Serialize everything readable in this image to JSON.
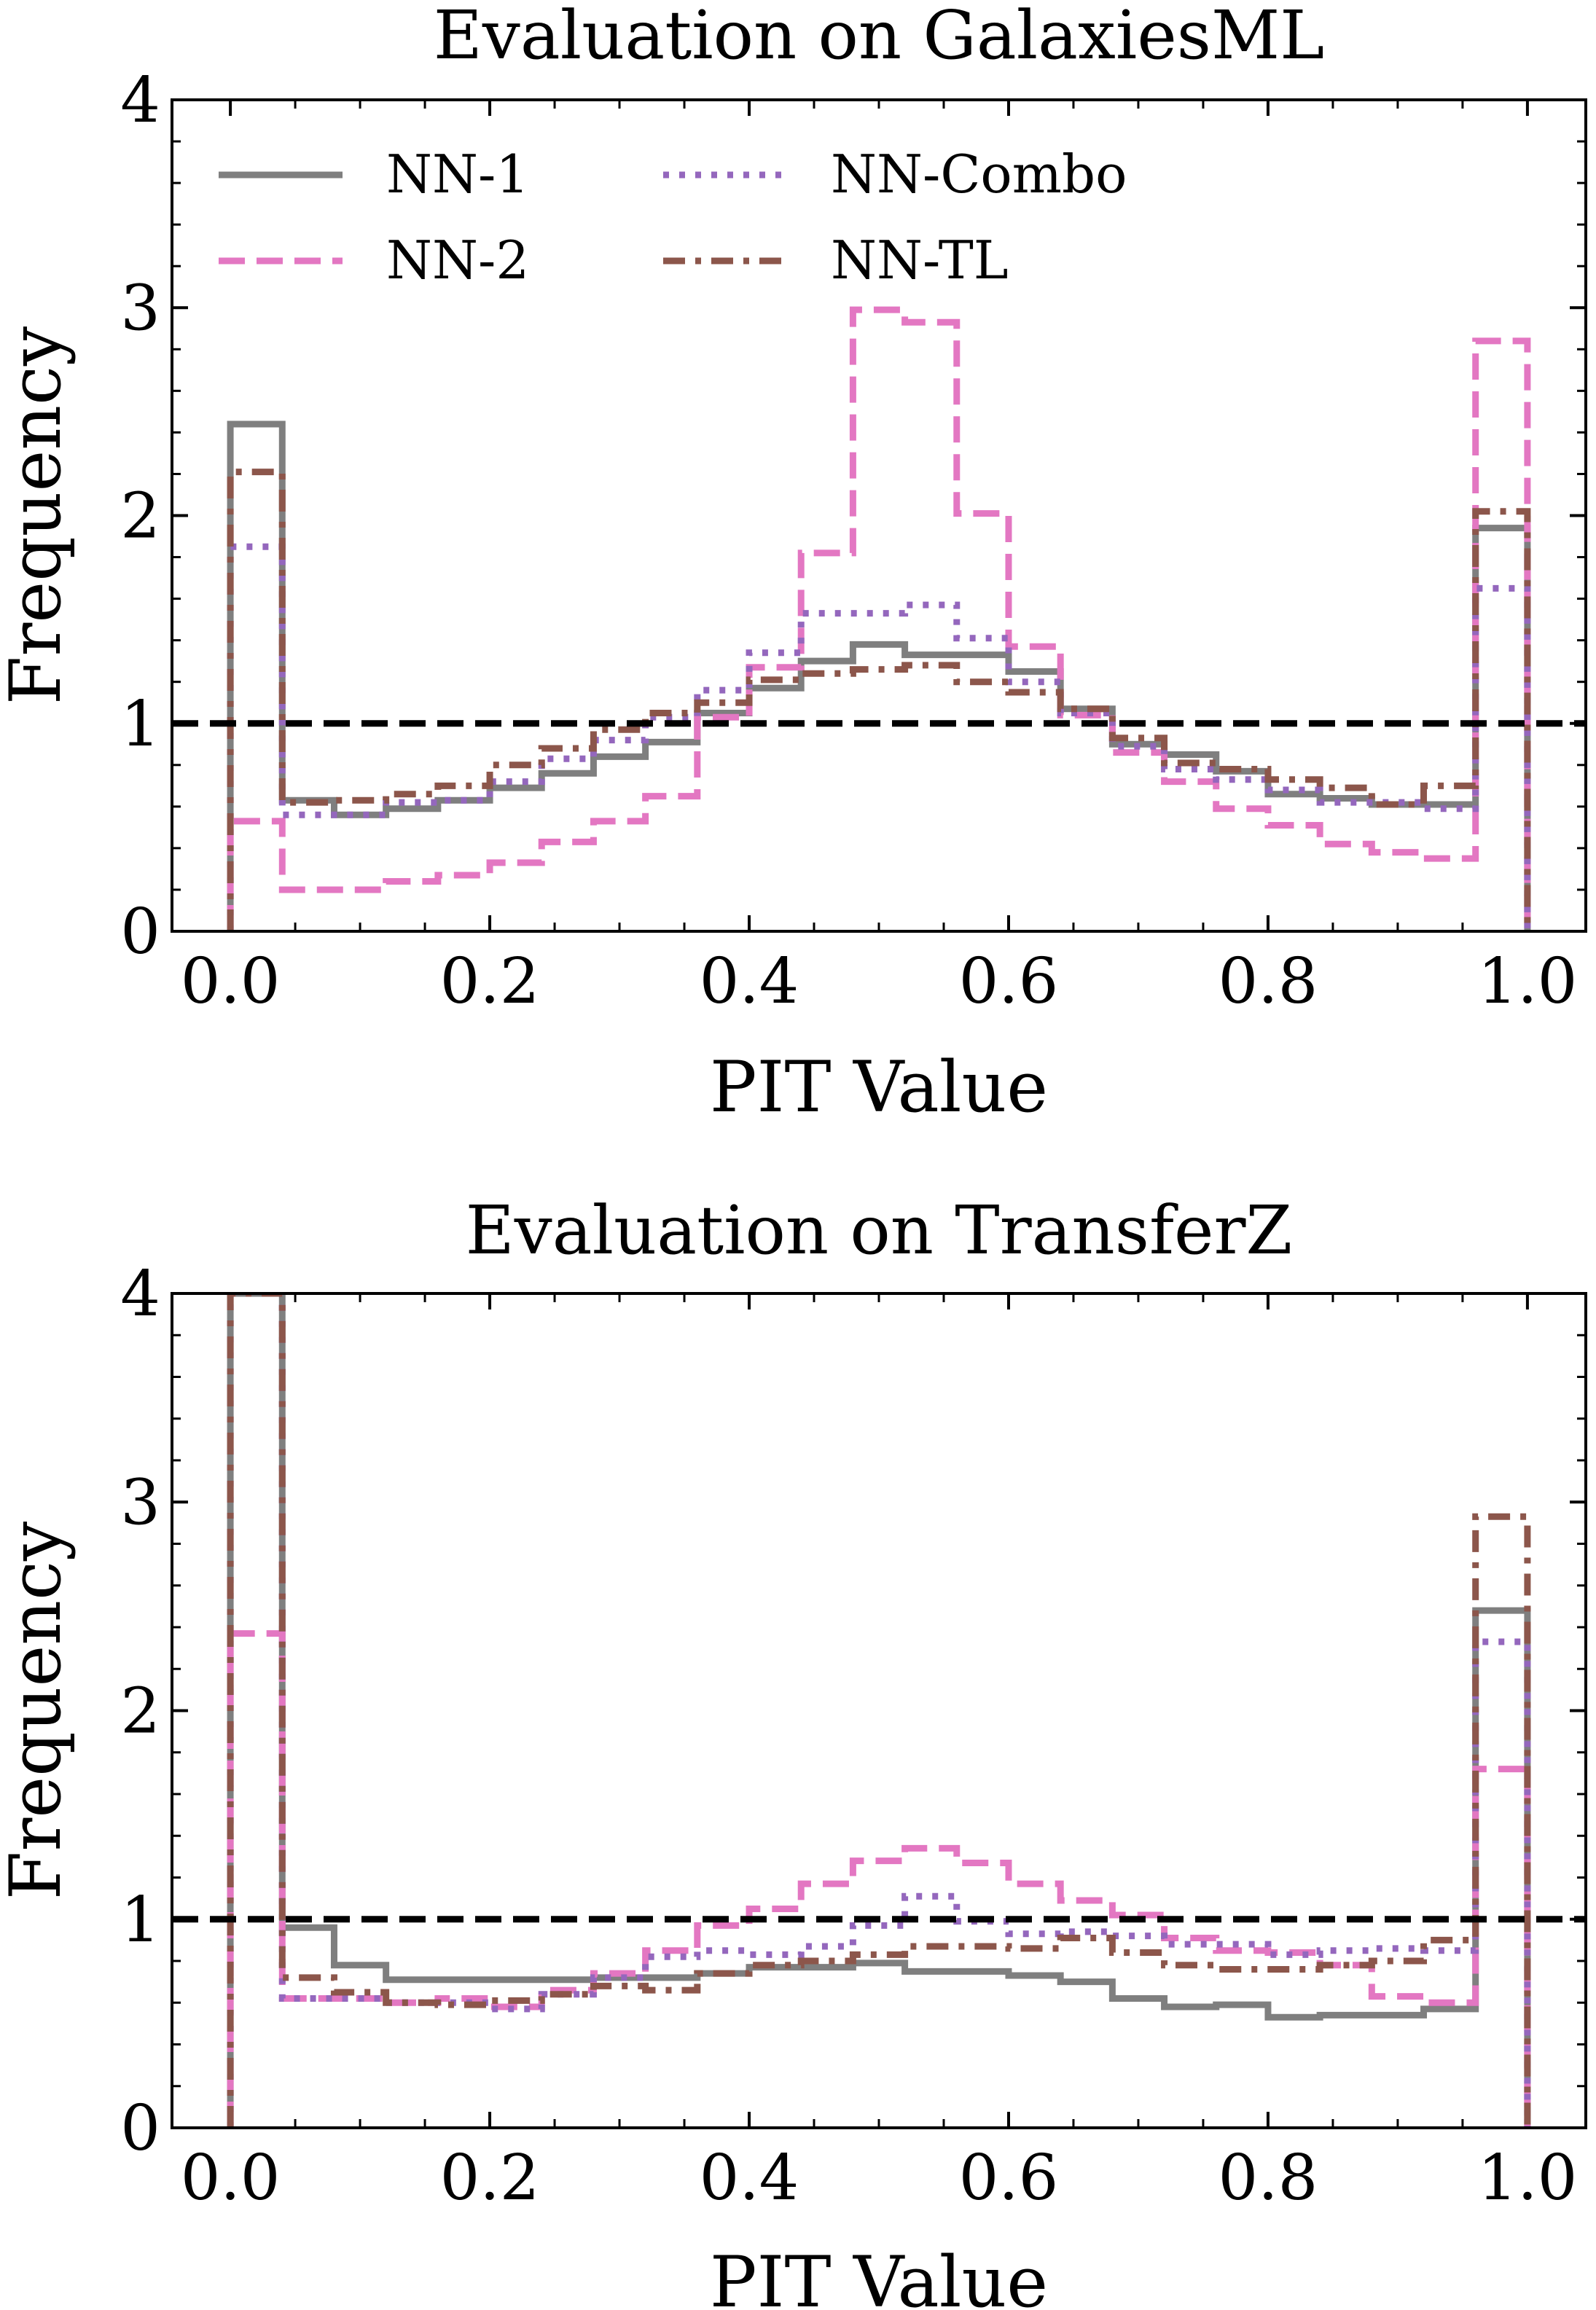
{
  "chart_data": [
    {
      "type": "histogram-step",
      "title": "Evaluation on GalaxiesML",
      "xlabel": "PIT Value",
      "ylabel": "Frequency",
      "xlim": [
        -0.045,
        1.045
      ],
      "ylim": [
        0,
        4
      ],
      "xticks": [
        "0.0",
        "0.2",
        "0.4",
        "0.6",
        "0.8",
        "1.0"
      ],
      "yticks": [
        "0",
        "1",
        "2",
        "3",
        "4"
      ],
      "reference_line": 1.0,
      "bin_edges": [
        0,
        0.04,
        0.08,
        0.12,
        0.16,
        0.2,
        0.24,
        0.28,
        0.32,
        0.36,
        0.4,
        0.44,
        0.48,
        0.52,
        0.56,
        0.6,
        0.64,
        0.68,
        0.72,
        0.76,
        0.8,
        0.84,
        0.88,
        0.92,
        0.96,
        1.0
      ],
      "series": [
        {
          "name": "NN-1",
          "values": [
            2.44,
            0.63,
            0.56,
            0.59,
            0.63,
            0.69,
            0.76,
            0.84,
            0.91,
            1.05,
            1.17,
            1.3,
            1.38,
            1.33,
            1.33,
            1.25,
            1.07,
            0.9,
            0.85,
            0.77,
            0.66,
            0.64,
            0.61,
            0.61,
            1.94
          ]
        },
        {
          "name": "NN-2",
          "values": [
            0.53,
            0.2,
            0.2,
            0.24,
            0.27,
            0.33,
            0.43,
            0.53,
            0.65,
            1.03,
            1.27,
            1.82,
            2.99,
            2.93,
            2.01,
            1.37,
            1.04,
            0.86,
            0.72,
            0.59,
            0.51,
            0.42,
            0.38,
            0.35,
            2.84
          ]
        },
        {
          "name": "NN-Combo",
          "values": [
            1.85,
            0.56,
            0.56,
            0.62,
            0.63,
            0.72,
            0.83,
            0.92,
            1.03,
            1.16,
            1.34,
            1.53,
            1.53,
            1.57,
            1.41,
            1.2,
            1.05,
            0.89,
            0.78,
            0.73,
            0.68,
            0.62,
            0.62,
            0.59,
            1.65
          ]
        },
        {
          "name": "NN-TL",
          "values": [
            2.21,
            0.62,
            0.63,
            0.66,
            0.7,
            0.8,
            0.88,
            0.97,
            1.05,
            1.1,
            1.21,
            1.24,
            1.26,
            1.28,
            1.2,
            1.15,
            1.07,
            0.93,
            0.81,
            0.78,
            0.73,
            0.69,
            0.61,
            0.7,
            2.02
          ]
        }
      ]
    },
    {
      "type": "histogram-step",
      "title": "Evaluation on TransferZ",
      "xlabel": "PIT Value",
      "ylabel": "Frequency",
      "xlim": [
        -0.045,
        1.045
      ],
      "ylim": [
        0,
        4
      ],
      "xticks": [
        "0.0",
        "0.2",
        "0.4",
        "0.6",
        "0.8",
        "1.0"
      ],
      "yticks": [
        "0",
        "1",
        "2",
        "3",
        "4"
      ],
      "reference_line": 1.0,
      "bin_edges": [
        0,
        0.04,
        0.08,
        0.12,
        0.16,
        0.2,
        0.24,
        0.28,
        0.32,
        0.36,
        0.4,
        0.44,
        0.48,
        0.52,
        0.56,
        0.6,
        0.64,
        0.68,
        0.72,
        0.76,
        0.8,
        0.84,
        0.88,
        0.92,
        0.96,
        1.0
      ],
      "series": [
        {
          "name": "NN-1",
          "values": [
            4.0,
            0.96,
            0.78,
            0.71,
            0.71,
            0.71,
            0.71,
            0.72,
            0.72,
            0.74,
            0.77,
            0.77,
            0.79,
            0.75,
            0.75,
            0.73,
            0.7,
            0.62,
            0.58,
            0.59,
            0.53,
            0.54,
            0.54,
            0.57,
            2.48
          ]
        },
        {
          "name": "NN-2",
          "values": [
            2.37,
            0.62,
            0.62,
            0.6,
            0.62,
            0.58,
            0.66,
            0.74,
            0.85,
            0.97,
            1.05,
            1.17,
            1.28,
            1.34,
            1.27,
            1.17,
            1.09,
            1.02,
            0.91,
            0.85,
            0.84,
            0.78,
            0.63,
            0.6,
            1.72
          ]
        },
        {
          "name": "NN-Combo",
          "values": [
            4.0,
            0.62,
            0.62,
            0.6,
            0.6,
            0.57,
            0.64,
            0.72,
            0.82,
            0.85,
            0.83,
            0.87,
            0.97,
            1.11,
            0.99,
            0.93,
            0.94,
            0.92,
            0.88,
            0.88,
            0.83,
            0.85,
            0.86,
            0.85,
            2.33
          ]
        },
        {
          "name": "NN-TL",
          "values": [
            4.0,
            0.72,
            0.65,
            0.6,
            0.59,
            0.61,
            0.64,
            0.68,
            0.66,
            0.74,
            0.78,
            0.8,
            0.83,
            0.87,
            0.87,
            0.86,
            0.91,
            0.84,
            0.78,
            0.76,
            0.76,
            0.78,
            0.8,
            0.9,
            2.93
          ]
        }
      ]
    }
  ],
  "styles": {
    "NN-1": {
      "color": "#7f7f7f",
      "dash": "solid"
    },
    "NN-2": {
      "color": "#e377c2",
      "dash": "dashed"
    },
    "NN-Combo": {
      "color": "#9467bd",
      "dash": "dotted"
    },
    "NN-TL": {
      "color": "#8c564b",
      "dash": "dashdot"
    },
    "reference": {
      "color": "#000000",
      "dash": "dashed"
    }
  },
  "legend": {
    "placement": "top-left",
    "entries": [
      "NN-1",
      "NN-Combo",
      "NN-2",
      "NN-TL"
    ]
  }
}
